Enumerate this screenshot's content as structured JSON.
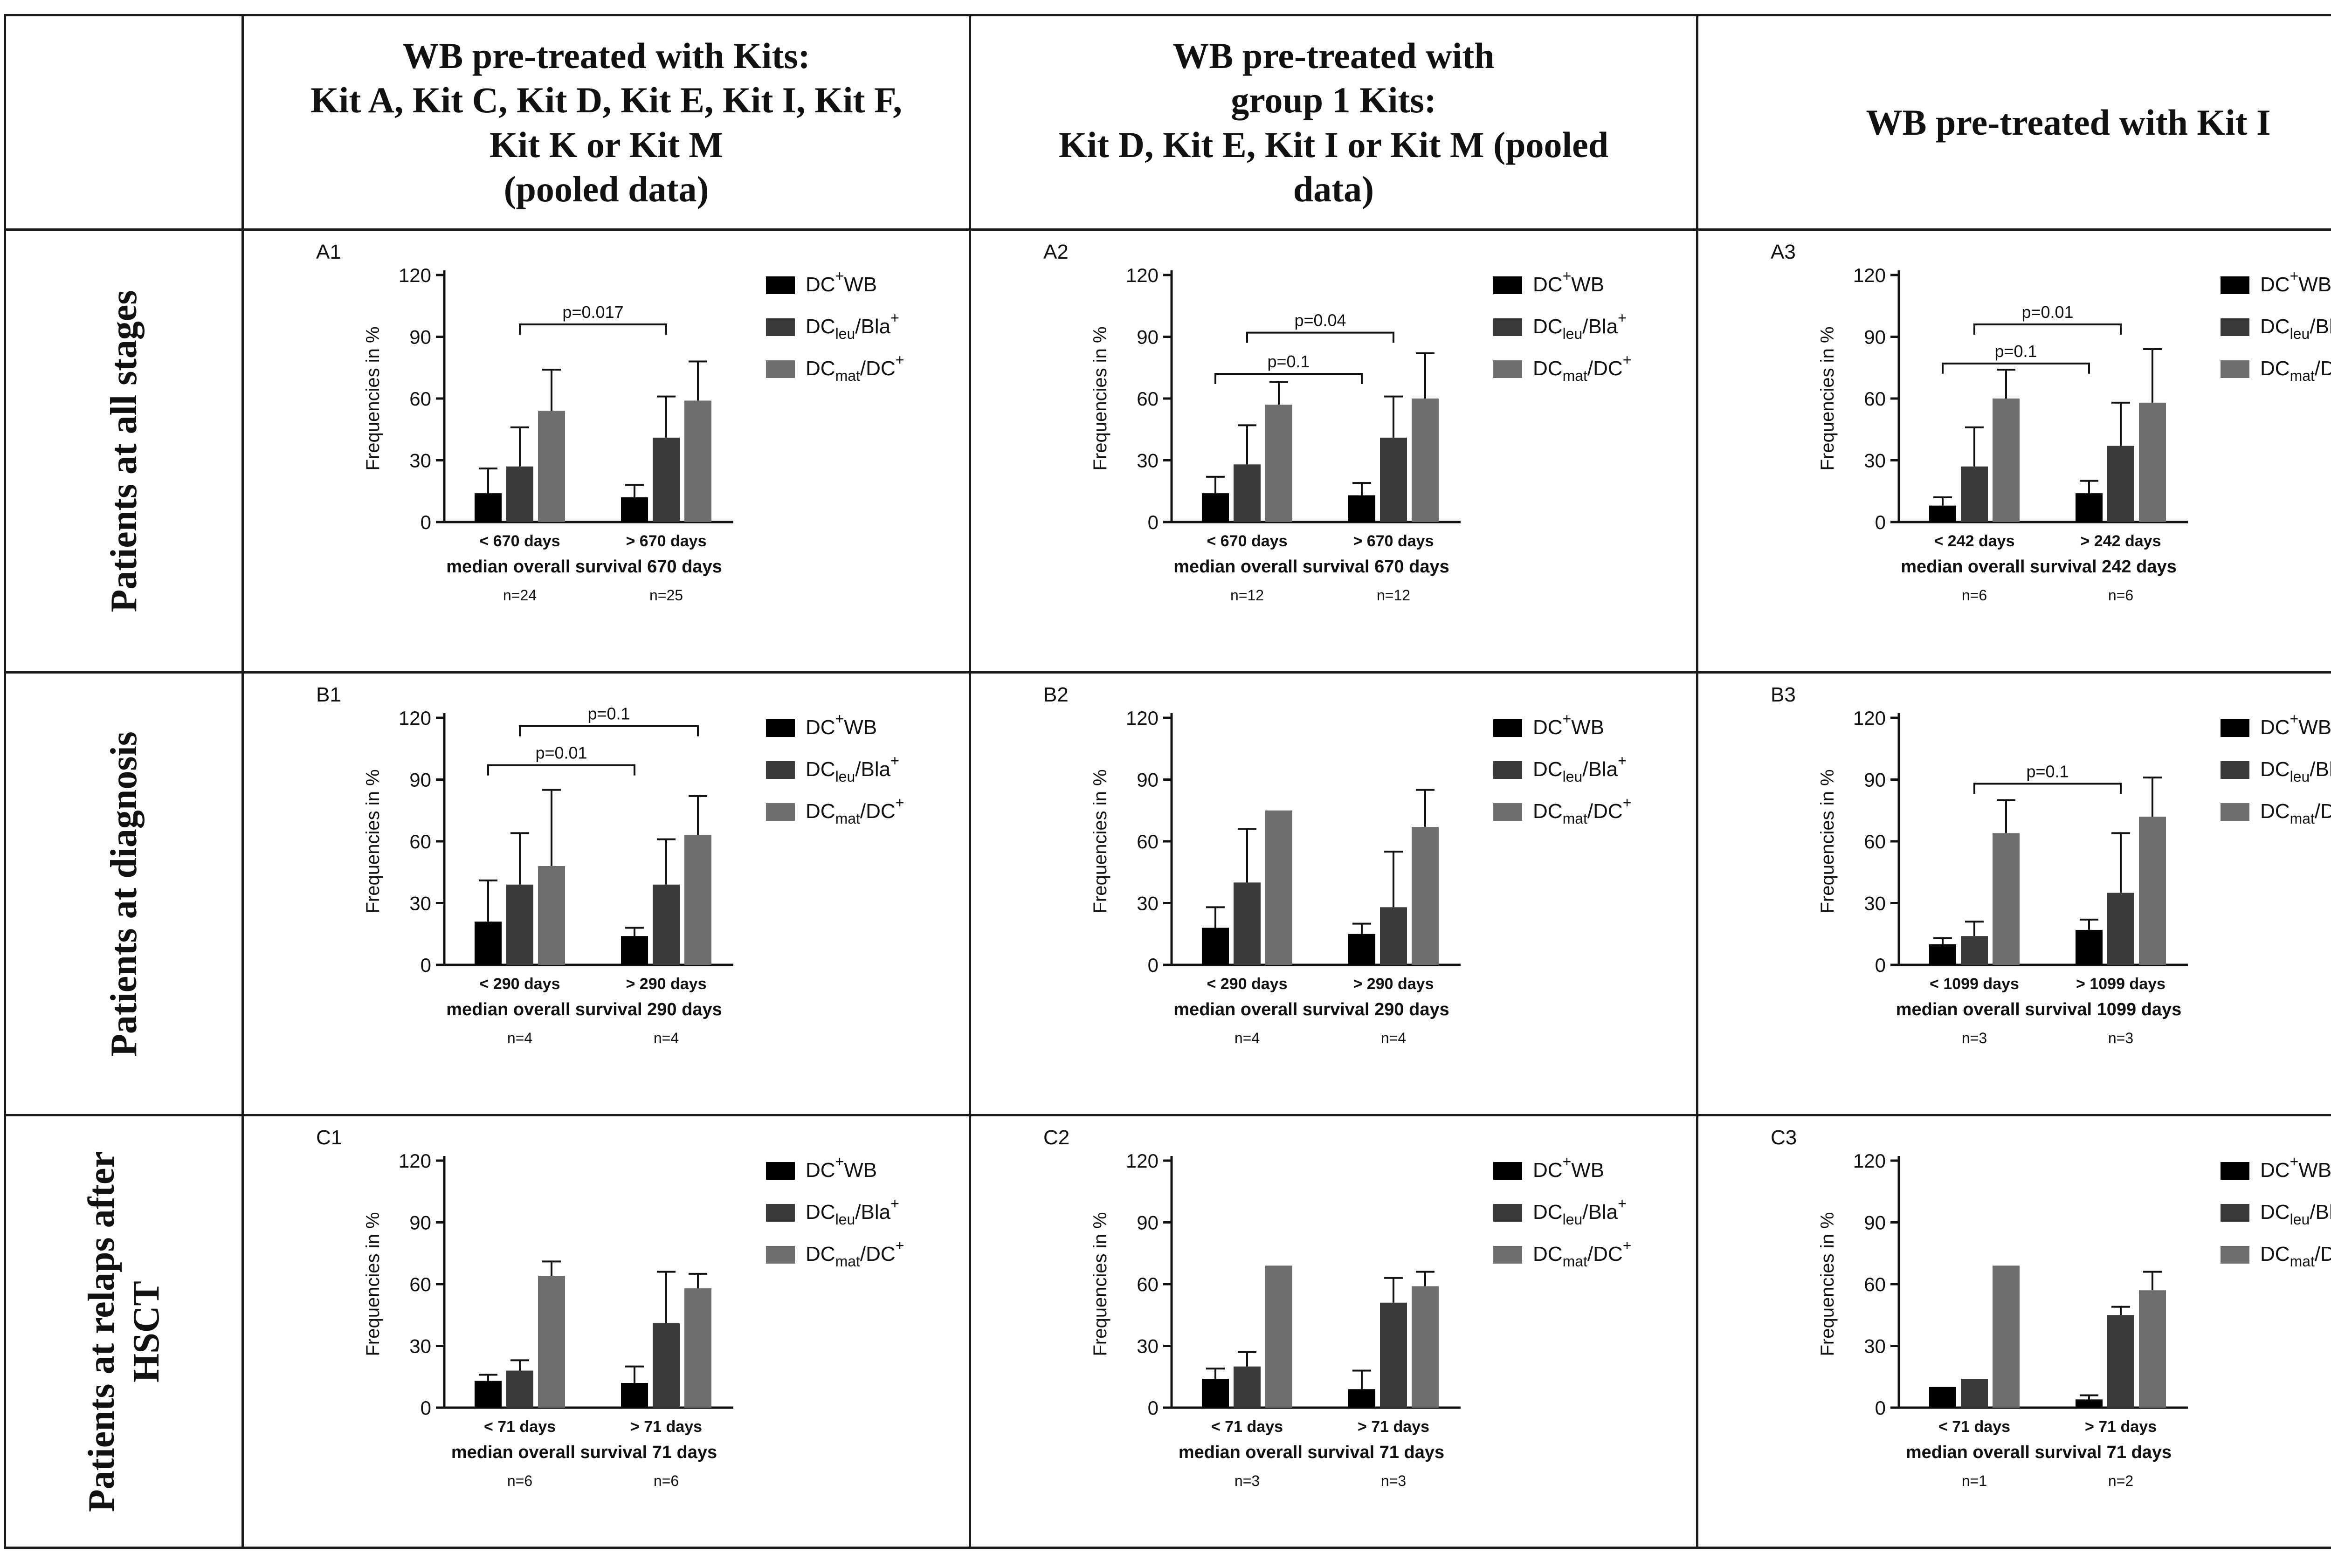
{
  "column_headers": [
    {
      "lines": []
    },
    {
      "lines": [
        "WB pre-treated with Kits:",
        "Kit A, Kit C, Kit D, Kit E, Kit I, Kit F,",
        "Kit K or Kit M",
        "(pooled data)"
      ]
    },
    {
      "lines": [
        "WB pre-treated with",
        "group 1 Kits:",
        "Kit D, Kit E, Kit I or Kit M (pooled",
        "data)"
      ]
    },
    {
      "lines": [
        "WB pre-treated with Kit I"
      ]
    }
  ],
  "row_headers": [
    {
      "lines": [
        "Patients at all stages"
      ]
    },
    {
      "lines": [
        "Patients at diagnosis"
      ]
    },
    {
      "lines": [
        "Patients at relaps after",
        "HSCT"
      ]
    }
  ],
  "legend": {
    "items": [
      {
        "main": "DC",
        "sub": "",
        "sup": "+",
        "rest": "WB",
        "color": "#000000"
      },
      {
        "main": "DC",
        "sub": "leu",
        "sup": "",
        "rest": "/Bla",
        "rest_sup": "+",
        "color": "#3b3b3b"
      },
      {
        "main": "DC",
        "sub": "mat",
        "sup": "",
        "rest": "/DC",
        "rest_sup": "+",
        "color": "#6e6e6e"
      }
    ]
  },
  "colors": {
    "series": [
      "#000000",
      "#3b3b3b",
      "#6e6e6e"
    ],
    "border": "#1a1a1a"
  },
  "chart_data": [
    {
      "panel": "A1",
      "type": "bar",
      "ylabel": "Frequencies in %",
      "ylim": [
        0,
        120
      ],
      "yticks": [
        0,
        30,
        60,
        90,
        120
      ],
      "categories": [
        "< 670 days",
        "> 670 days"
      ],
      "xtitle": "median overall survival 670 days",
      "n": [
        "n=24",
        "n=25"
      ],
      "series": [
        {
          "name": "DC+WB",
          "values": [
            14,
            12
          ],
          "errors": [
            12,
            6
          ]
        },
        {
          "name": "DCleu/Bla+",
          "values": [
            27,
            41
          ],
          "errors": [
            19,
            20
          ]
        },
        {
          "name": "DCmat/DC+",
          "values": [
            54,
            59
          ],
          "errors": [
            20,
            19
          ]
        }
      ],
      "brackets": [
        {
          "label": "p=0.017",
          "from_series": 1,
          "from_cat": 0,
          "to_series": 1,
          "to_cat": 1,
          "y": 96
        }
      ]
    },
    {
      "panel": "A2",
      "type": "bar",
      "ylabel": "Frequencies in %",
      "ylim": [
        0,
        120
      ],
      "yticks": [
        0,
        30,
        60,
        90,
        120
      ],
      "categories": [
        "< 670 days",
        "> 670 days"
      ],
      "xtitle": "median overall survival 670 days",
      "n": [
        "n=12",
        "n=12"
      ],
      "series": [
        {
          "name": "DC+WB",
          "values": [
            14,
            13
          ],
          "errors": [
            8,
            6
          ]
        },
        {
          "name": "DCleu/Bla+",
          "values": [
            28,
            41
          ],
          "errors": [
            19,
            20
          ]
        },
        {
          "name": "DCmat/DC+",
          "values": [
            57,
            60
          ],
          "errors": [
            11,
            22
          ]
        }
      ],
      "brackets": [
        {
          "label": "p=0.1",
          "from_series": 0,
          "from_cat": 0,
          "to_series": 0,
          "to_cat": 1,
          "y": 72
        },
        {
          "label": "p=0.04",
          "from_series": 1,
          "from_cat": 0,
          "to_series": 1,
          "to_cat": 1,
          "y": 92
        }
      ]
    },
    {
      "panel": "A3",
      "type": "bar",
      "ylabel": "Frequencies in %",
      "ylim": [
        0,
        120
      ],
      "yticks": [
        0,
        30,
        60,
        90,
        120
      ],
      "categories": [
        "< 242 days",
        "> 242 days"
      ],
      "xtitle": "median overall survival 242 days",
      "n": [
        "n=6",
        "n=6"
      ],
      "series": [
        {
          "name": "DC+WB",
          "values": [
            8,
            14
          ],
          "errors": [
            4,
            6
          ]
        },
        {
          "name": "DCleu/Bla+",
          "values": [
            27,
            37
          ],
          "errors": [
            19,
            21
          ]
        },
        {
          "name": "DCmat/DC+",
          "values": [
            60,
            58
          ],
          "errors": [
            14,
            26
          ]
        }
      ],
      "brackets": [
        {
          "label": "p=0.1",
          "from_series": 0,
          "from_cat": 0,
          "to_series": 0,
          "to_cat": 1,
          "y": 77
        },
        {
          "label": "p=0.01",
          "from_series": 1,
          "from_cat": 0,
          "to_series": 1,
          "to_cat": 1,
          "y": 96
        }
      ]
    },
    {
      "panel": "B1",
      "type": "bar",
      "ylabel": "Frequencies in %",
      "ylim": [
        0,
        120
      ],
      "yticks": [
        0,
        30,
        60,
        90,
        120
      ],
      "categories": [
        "< 290 days",
        "> 290 days"
      ],
      "xtitle": "median overall survival 290 days",
      "n": [
        "n=4",
        "n=4"
      ],
      "series": [
        {
          "name": "DC+WB",
          "values": [
            21,
            14
          ],
          "errors": [
            20,
            4
          ]
        },
        {
          "name": "DCleu/Bla+",
          "values": [
            39,
            39
          ],
          "errors": [
            25,
            22
          ]
        },
        {
          "name": "DCmat/DC+",
          "values": [
            48,
            63
          ],
          "errors": [
            37,
            19
          ]
        }
      ],
      "brackets": [
        {
          "label": "p=0.01",
          "from_series": 0,
          "from_cat": 0,
          "to_series": 0,
          "to_cat": 1,
          "y": 97
        },
        {
          "label": "p=0.1",
          "from_series": 1,
          "from_cat": 0,
          "to_series": 2,
          "to_cat": 1,
          "y": 116
        }
      ]
    },
    {
      "panel": "B2",
      "type": "bar",
      "ylabel": "Frequencies in %",
      "ylim": [
        0,
        120
      ],
      "yticks": [
        0,
        30,
        60,
        90,
        120
      ],
      "categories": [
        "< 290 days",
        "> 290 days"
      ],
      "xtitle": "median overall survival 290 days",
      "n": [
        "n=4",
        "n=4"
      ],
      "series": [
        {
          "name": "DC+WB",
          "values": [
            18,
            15
          ],
          "errors": [
            10,
            5
          ]
        },
        {
          "name": "DCleu/Bla+",
          "values": [
            40,
            28
          ],
          "errors": [
            26,
            27
          ]
        },
        {
          "name": "DCmat/DC+",
          "values": [
            75,
            67
          ],
          "errors": [
            0,
            18
          ]
        }
      ],
      "brackets": []
    },
    {
      "panel": "B3",
      "type": "bar",
      "ylabel": "Frequencies in %",
      "ylim": [
        0,
        120
      ],
      "yticks": [
        0,
        30,
        60,
        90,
        120
      ],
      "categories": [
        "< 1099 days",
        "> 1099 days"
      ],
      "xtitle": "median overall survival 1099 days",
      "n": [
        "n=3",
        "n=3"
      ],
      "series": [
        {
          "name": "DC+WB",
          "values": [
            10,
            17
          ],
          "errors": [
            3,
            5
          ]
        },
        {
          "name": "DCleu/Bla+",
          "values": [
            14,
            35
          ],
          "errors": [
            7,
            29
          ]
        },
        {
          "name": "DCmat/DC+",
          "values": [
            64,
            72
          ],
          "errors": [
            16,
            19
          ]
        }
      ],
      "brackets": [
        {
          "label": "p=0.1",
          "from_series": 1,
          "from_cat": 0,
          "to_series": 1,
          "to_cat": 1,
          "y": 88
        }
      ]
    },
    {
      "panel": "C1",
      "type": "bar",
      "ylabel": "Frequencies in %",
      "ylim": [
        0,
        120
      ],
      "yticks": [
        0,
        30,
        60,
        90,
        120
      ],
      "categories": [
        "< 71 days",
        "> 71 days"
      ],
      "xtitle": "median overall survival 71 days",
      "n": [
        "n=6",
        "n=6"
      ],
      "series": [
        {
          "name": "DC+WB",
          "values": [
            13,
            12
          ],
          "errors": [
            3,
            8
          ]
        },
        {
          "name": "DCleu/Bla+",
          "values": [
            18,
            41
          ],
          "errors": [
            5,
            25
          ]
        },
        {
          "name": "DCmat/DC+",
          "values": [
            64,
            58
          ],
          "errors": [
            7,
            7
          ]
        }
      ],
      "brackets": []
    },
    {
      "panel": "C2",
      "type": "bar",
      "ylabel": "Frequencies in %",
      "ylim": [
        0,
        120
      ],
      "yticks": [
        0,
        30,
        60,
        90,
        120
      ],
      "categories": [
        "< 71 days",
        "> 71 days"
      ],
      "xtitle": "median overall survival 71 days",
      "n": [
        "n=3",
        "n=3"
      ],
      "series": [
        {
          "name": "DC+WB",
          "values": [
            14,
            9
          ],
          "errors": [
            5,
            9
          ]
        },
        {
          "name": "DCleu/Bla+",
          "values": [
            20,
            51
          ],
          "errors": [
            7,
            12
          ]
        },
        {
          "name": "DCmat/DC+",
          "values": [
            69,
            59
          ],
          "errors": [
            0,
            7
          ]
        }
      ],
      "brackets": []
    },
    {
      "panel": "C3",
      "type": "bar",
      "ylabel": "Frequencies in %",
      "ylim": [
        0,
        120
      ],
      "yticks": [
        0,
        30,
        60,
        90,
        120
      ],
      "categories": [
        "< 71 days",
        "> 71 days"
      ],
      "xtitle": "median overall survival 71 days",
      "n": [
        "n=1",
        "n=2"
      ],
      "series": [
        {
          "name": "DC+WB",
          "values": [
            10,
            4
          ],
          "errors": [
            0,
            2
          ]
        },
        {
          "name": "DCleu/Bla+",
          "values": [
            14,
            45
          ],
          "errors": [
            0,
            4
          ]
        },
        {
          "name": "DCmat/DC+",
          "values": [
            69,
            57
          ],
          "errors": [
            0,
            9
          ]
        }
      ],
      "brackets": []
    }
  ]
}
